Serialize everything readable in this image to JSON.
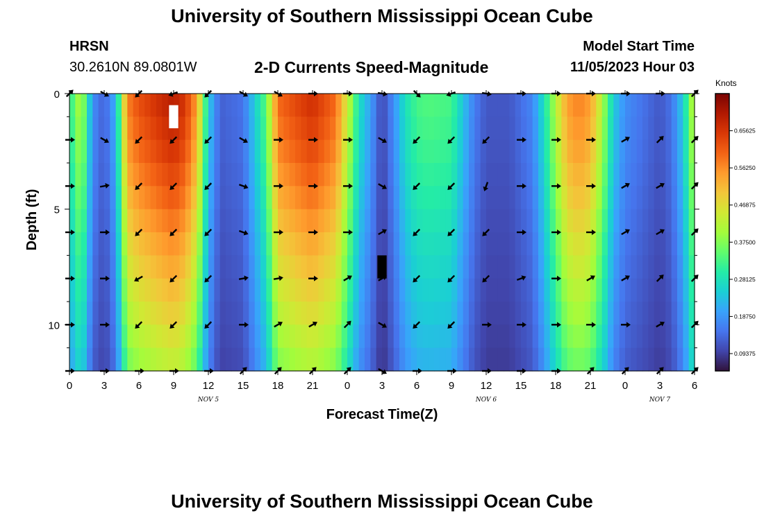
{
  "header": {
    "title": "University of Southern Mississippi Ocean Cube",
    "station": "HRSN",
    "coords": "30.2610N  89.0801W",
    "plot_title": "2-D Currents Speed-Magnitude",
    "model_start_label": "Model Start Time",
    "model_start_value": "11/05/2023 Hour 03"
  },
  "footer": {
    "title": "University of Southern Mississippi Ocean Cube"
  },
  "colors": {
    "scale": [
      "#30123b",
      "#4145ab",
      "#4675ed",
      "#39a2fc",
      "#1bcfd4",
      "#24eca6",
      "#61fc6c",
      "#a4fc3b",
      "#d1e834",
      "#f3c63a",
      "#fe9b2d",
      "#f36315",
      "#d93806",
      "#b11901",
      "#7a0403"
    ]
  },
  "chart_data": {
    "type": "heatmap",
    "title": "2-D Currents Speed-Magnitude",
    "xlabel": "Forecast Time(Z)",
    "ylabel": "Depth (ft)",
    "x_tick_labels": [
      "0",
      "3",
      "6",
      "9",
      "12",
      "15",
      "18",
      "21",
      "0",
      "3",
      "6",
      "9",
      "12",
      "15",
      "18",
      "21",
      "0",
      "3",
      "6"
    ],
    "x_hours_range": [
      0,
      54
    ],
    "date_labels": [
      {
        "label": "NOV 5",
        "hour": 12
      },
      {
        "label": "NOV 6",
        "hour": 36
      },
      {
        "label": "NOV 7",
        "hour": 51
      }
    ],
    "y_ticks": [
      0,
      5,
      10
    ],
    "ylim": [
      0,
      12
    ],
    "colorbar": {
      "label": "Knots",
      "range": [
        0.05,
        0.75
      ],
      "ticks": [
        "0.65625",
        "0.56250",
        "0.46875",
        "0.37500",
        "0.28125",
        "0.18750",
        "0.09375"
      ],
      "tick_values": [
        0.65625,
        0.5625,
        0.46875,
        0.375,
        0.28125,
        0.1875,
        0.09375
      ]
    },
    "arrow_hours": [
      0,
      3,
      6,
      9,
      12,
      15,
      18,
      21,
      24,
      27,
      30,
      33,
      36,
      39,
      42,
      45,
      48,
      51,
      54
    ],
    "arrow_depths": [
      0,
      2,
      4,
      6,
      8,
      10,
      12
    ],
    "arrow_directions_deg": [
      [
        45,
        120,
        225,
        250,
        225,
        120,
        120,
        90,
        90,
        100,
        135,
        250,
        100,
        90,
        90,
        90,
        90,
        90,
        45
      ],
      [
        90,
        120,
        225,
        225,
        225,
        120,
        90,
        90,
        90,
        120,
        225,
        225,
        225,
        90,
        90,
        90,
        60,
        45,
        45
      ],
      [
        90,
        80,
        225,
        225,
        225,
        110,
        90,
        90,
        90,
        120,
        225,
        225,
        200,
        90,
        90,
        90,
        60,
        60,
        45
      ],
      [
        90,
        90,
        225,
        225,
        225,
        110,
        90,
        90,
        90,
        60,
        225,
        225,
        225,
        90,
        90,
        90,
        60,
        60,
        45
      ],
      [
        90,
        90,
        240,
        225,
        225,
        80,
        80,
        90,
        60,
        60,
        225,
        225,
        225,
        70,
        90,
        60,
        60,
        45,
        45
      ],
      [
        90,
        90,
        225,
        225,
        225,
        90,
        60,
        60,
        45,
        120,
        225,
        225,
        90,
        90,
        90,
        90,
        90,
        60,
        45
      ],
      [
        90,
        90,
        90,
        90,
        90,
        45,
        45,
        45,
        45,
        120,
        90,
        90,
        90,
        90,
        90,
        45,
        45,
        45,
        45
      ]
    ],
    "speed_profile_by_hour": [
      [
        0,
        0.3
      ],
      [
        1,
        0.43
      ],
      [
        2,
        0.18
      ],
      [
        3,
        0.13
      ],
      [
        4,
        0.22
      ],
      [
        5,
        0.58
      ],
      [
        6,
        0.63
      ],
      [
        8,
        0.68
      ],
      [
        9,
        0.7
      ],
      [
        10,
        0.66
      ],
      [
        11,
        0.55
      ],
      [
        12,
        0.25
      ],
      [
        13,
        0.13
      ],
      [
        15,
        0.15
      ],
      [
        16,
        0.25
      ],
      [
        17,
        0.35
      ],
      [
        18,
        0.6
      ],
      [
        20,
        0.65
      ],
      [
        21,
        0.67
      ],
      [
        23,
        0.6
      ],
      [
        24,
        0.45
      ],
      [
        25,
        0.28
      ],
      [
        26,
        0.2
      ],
      [
        27,
        0.1
      ],
      [
        28,
        0.18
      ],
      [
        29,
        0.28
      ],
      [
        30,
        0.33
      ],
      [
        31,
        0.34
      ],
      [
        33,
        0.33
      ],
      [
        34,
        0.24
      ],
      [
        35,
        0.16
      ],
      [
        36,
        0.12
      ],
      [
        38,
        0.12
      ],
      [
        40,
        0.17
      ],
      [
        41,
        0.28
      ],
      [
        42,
        0.42
      ],
      [
        43,
        0.55
      ],
      [
        44,
        0.58
      ],
      [
        45,
        0.55
      ],
      [
        46,
        0.42
      ],
      [
        47,
        0.25
      ],
      [
        48,
        0.18
      ],
      [
        50,
        0.14
      ],
      [
        51,
        0.12
      ],
      [
        52,
        0.15
      ],
      [
        53,
        0.25
      ],
      [
        54,
        0.45
      ]
    ],
    "speed_depth_factor": [
      1.0,
      0.97,
      0.95,
      0.92,
      0.88,
      0.85,
      0.8,
      0.77,
      0.73,
      0.7,
      0.66,
      0.62,
      0.58
    ],
    "masked_cells": [
      {
        "hour": 9,
        "depth": 0.5,
        "value": "missing"
      },
      {
        "hour": 27,
        "depth": 7.0,
        "value": "black"
      }
    ]
  }
}
